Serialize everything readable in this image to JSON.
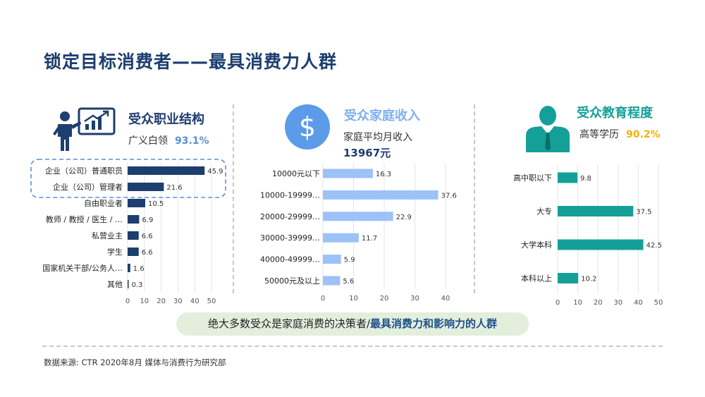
{
  "title": "锁定目标消费者——最具消费力人群",
  "panels": {
    "occupation": {
      "title": "受众职业结构",
      "subtitle": "广义白领",
      "pct": "93.1%",
      "color": "#1d3e6e"
    },
    "income": {
      "title": "受众家庭收入",
      "subtitle": "家庭平均月收入",
      "value": "13967元",
      "color": "#7fb0f0"
    },
    "education": {
      "title": "受众教育程度",
      "subtitle": "高等学历",
      "pct": "90.2%",
      "color": "#14a098"
    }
  },
  "banner": {
    "normal": "绝大多数受众是家庭消费的决策者/",
    "highlight": "最具消费力和影响力的人群"
  },
  "source": "数据来源: CTR 2020年8月 媒体与消费行为研究部",
  "colors": {
    "title": "#1d3e6e",
    "occupation_bar": "#1d3e6e",
    "income_bar": "#9cc2f7",
    "education_bar": "#14a098",
    "pct_blue": "#5b8fd6",
    "pct_gold": "#f0b400"
  },
  "chart_data": [
    {
      "type": "bar",
      "orientation": "horizontal",
      "categories": [
        "企业（公司）普通职员",
        "企业（公司）管理者",
        "自由职业者",
        "教师 / 教授 / 医生 / …",
        "私营业主",
        "学生",
        "国家机关干部/公务人…",
        "其他"
      ],
      "values": [
        45.9,
        21.6,
        10.5,
        6.9,
        6.6,
        6.6,
        1.6,
        0.3
      ],
      "xlim": [
        0,
        50
      ],
      "xticks": [
        0,
        10,
        20,
        30,
        40,
        50
      ],
      "grid": true,
      "highlighted_categories": [
        "企业（公司）普通职员",
        "企业（公司）管理者"
      ]
    },
    {
      "type": "bar",
      "orientation": "horizontal",
      "categories": [
        "10000元以下",
        "10000-19999…",
        "20000-29999…",
        "30000-39999…",
        "40000-49999…",
        "50000元及以上"
      ],
      "values": [
        16.3,
        37.6,
        22.9,
        11.7,
        5.9,
        5.6
      ],
      "xlim": [
        0,
        40
      ],
      "xticks": [
        0,
        10,
        20,
        30,
        40
      ],
      "grid": true
    },
    {
      "type": "bar",
      "orientation": "horizontal",
      "categories": [
        "高中职以下",
        "大专",
        "大学本科",
        "本科以上"
      ],
      "values": [
        9.8,
        37.5,
        42.5,
        10.2
      ],
      "xlim": [
        0,
        50
      ],
      "xticks": [
        0,
        10,
        20,
        30,
        40,
        50
      ],
      "grid": true
    }
  ]
}
